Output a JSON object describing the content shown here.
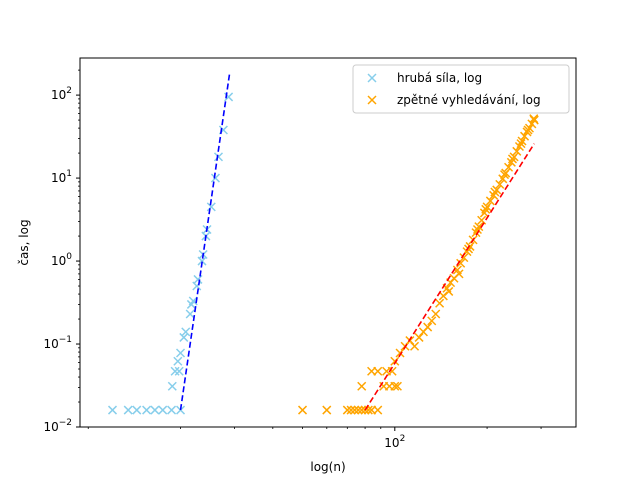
{
  "chart_data": {
    "type": "scatter",
    "title": "",
    "xlabel": "log(n)",
    "ylabel": "čas, log",
    "x_scale": "log",
    "y_scale": "log",
    "xlim": [
      9.4,
      390
    ],
    "ylim": [
      0.01,
      280
    ],
    "x_ticks": [
      {
        "value": 100,
        "label": "10^2"
      }
    ],
    "y_ticks": [
      {
        "value": 0.01,
        "label": "10^-2"
      },
      {
        "value": 0.1,
        "label": "10^-1"
      },
      {
        "value": 1,
        "label": "10^0"
      },
      {
        "value": 10,
        "label": "10^1"
      },
      {
        "value": 100,
        "label": "10^2"
      }
    ],
    "grid": false,
    "legend_position": "top-right",
    "series": [
      {
        "name": "hrubá síla, log",
        "marker": "x",
        "color": "#87ceeb",
        "points": [
          [
            12,
            0.016
          ],
          [
            13.5,
            0.016
          ],
          [
            14.4,
            0.016
          ],
          [
            15.5,
            0.016
          ],
          [
            16.5,
            0.016
          ],
          [
            17.5,
            0.016
          ],
          [
            18.7,
            0.016
          ],
          [
            20,
            0.016
          ],
          [
            18.8,
            0.031
          ],
          [
            19.2,
            0.047
          ],
          [
            19.8,
            0.047
          ],
          [
            19.6,
            0.062
          ],
          [
            20,
            0.078
          ],
          [
            20.5,
            0.12
          ],
          [
            20.8,
            0.14
          ],
          [
            21.5,
            0.23
          ],
          [
            21.7,
            0.3
          ],
          [
            22,
            0.33
          ],
          [
            22.6,
            0.5
          ],
          [
            22.8,
            0.6
          ],
          [
            23.5,
            1.0
          ],
          [
            23.7,
            1.2
          ],
          [
            24.2,
            2.0
          ],
          [
            24.4,
            2.4
          ],
          [
            25.2,
            4.5
          ],
          [
            26,
            10
          ],
          [
            26.6,
            18
          ],
          [
            27.6,
            38
          ],
          [
            28.7,
            95
          ]
        ]
      },
      {
        "name": "zpětné vyhledávání, log",
        "marker": "x",
        "color": "#ffa500",
        "points": [
          [
            50,
            0.016
          ],
          [
            60,
            0.016
          ],
          [
            70,
            0.016
          ],
          [
            72,
            0.016
          ],
          [
            74,
            0.016
          ],
          [
            76,
            0.016
          ],
          [
            78,
            0.016
          ],
          [
            80,
            0.016
          ],
          [
            82,
            0.016
          ],
          [
            84,
            0.016
          ],
          [
            88,
            0.016
          ],
          [
            78,
            0.031
          ],
          [
            84,
            0.047
          ],
          [
            88,
            0.047
          ],
          [
            92,
            0.031
          ],
          [
            96,
            0.031
          ],
          [
            100,
            0.031
          ],
          [
            102,
            0.031
          ],
          [
            94,
            0.047
          ],
          [
            98,
            0.047
          ],
          [
            100,
            0.062
          ],
          [
            104,
            0.078
          ],
          [
            108,
            0.094
          ],
          [
            112,
            0.11
          ],
          [
            116,
            0.094
          ],
          [
            120,
            0.12
          ],
          [
            124,
            0.14
          ],
          [
            128,
            0.16
          ],
          [
            132,
            0.19
          ],
          [
            136,
            0.23
          ],
          [
            140,
            0.31
          ],
          [
            144,
            0.38
          ],
          [
            148,
            0.47
          ],
          [
            152,
            0.55
          ],
          [
            156,
            0.62
          ],
          [
            160,
            0.78
          ],
          [
            164,
            0.94
          ],
          [
            168,
            1.1
          ],
          [
            172,
            1.3
          ],
          [
            176,
            1.5
          ],
          [
            180,
            1.8
          ],
          [
            184,
            2.2
          ],
          [
            188,
            2.6
          ],
          [
            192,
            3.1
          ],
          [
            196,
            3.8
          ],
          [
            200,
            4.5
          ],
          [
            205,
            5.3
          ],
          [
            210,
            6.2
          ],
          [
            215,
            7.2
          ],
          [
            220,
            8.4
          ],
          [
            225,
            9.8
          ],
          [
            230,
            11.5
          ],
          [
            235,
            13.5
          ],
          [
            240,
            15.5
          ],
          [
            245,
            18
          ],
          [
            250,
            21
          ],
          [
            255,
            24
          ],
          [
            260,
            28
          ],
          [
            265,
            32
          ],
          [
            270,
            36
          ],
          [
            275,
            40
          ],
          [
            280,
            45
          ],
          [
            285,
            50
          ],
          [
            150,
            0.43
          ],
          [
            162,
            0.7
          ],
          [
            174,
            1.4
          ],
          [
            186,
            2.4
          ],
          [
            198,
            4.2
          ],
          [
            212,
            6.8
          ],
          [
            228,
            11
          ],
          [
            242,
            17
          ],
          [
            258,
            26
          ],
          [
            272,
            38
          ],
          [
            284,
            52
          ]
        ]
      }
    ],
    "fit_lines": [
      {
        "series": "hrubá síla, log",
        "color": "#0000ff",
        "style": "dashed",
        "from": [
          20,
          0.016
        ],
        "to": [
          28.9,
          180
        ]
      },
      {
        "series": "zpětné vyhledávání, log",
        "color": "#ff0000",
        "style": "dashed",
        "from": [
          80,
          0.016
        ],
        "to": [
          285,
          26
        ]
      }
    ]
  }
}
